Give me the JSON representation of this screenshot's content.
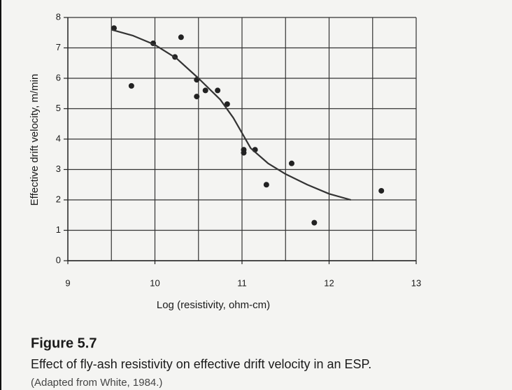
{
  "chart_data": {
    "type": "scatter",
    "x_label": "Log (resistivity, ohm-cm)",
    "y_label": "Effective drift velocity, m/min",
    "caption_title": "Figure 5.7",
    "caption": "Effect of fly-ash resistivity on effective drift velocity in an ESP.",
    "source": "(Adapted from White, 1984.)",
    "xlim": [
      9,
      13
    ],
    "ylim": [
      0,
      8
    ],
    "xticks": [
      9,
      10,
      11,
      12,
      13
    ],
    "yticks": [
      0,
      1,
      2,
      3,
      4,
      5,
      6,
      7,
      8
    ],
    "xgrid": [
      9.5,
      10,
      10.5,
      11,
      11.5,
      12,
      12.5,
      13
    ],
    "grid": true,
    "series": [
      {
        "type": "scatter",
        "color": "#222222",
        "x": [
          9.53,
          9.73,
          9.98,
          10.23,
          10.3,
          10.48,
          10.48,
          10.58,
          10.72,
          10.83,
          11.02,
          11.02,
          11.15,
          11.28,
          11.57,
          11.83,
          12.6
        ],
        "values": [
          7.65,
          5.75,
          7.15,
          6.7,
          7.35,
          5.95,
          5.4,
          5.6,
          5.6,
          5.15,
          3.65,
          3.55,
          3.65,
          2.5,
          3.2,
          1.25,
          2.3
        ]
      },
      {
        "type": "line",
        "color": "#333333",
        "x": [
          9.5,
          9.75,
          10,
          10.25,
          10.5,
          10.75,
          10.9,
          11,
          11.1,
          11.3,
          11.5,
          11.75,
          12,
          12.25
        ],
        "values": [
          7.6,
          7.4,
          7.1,
          6.65,
          6.0,
          5.3,
          4.7,
          4.2,
          3.7,
          3.2,
          2.85,
          2.5,
          2.2,
          2.0
        ]
      }
    ]
  }
}
